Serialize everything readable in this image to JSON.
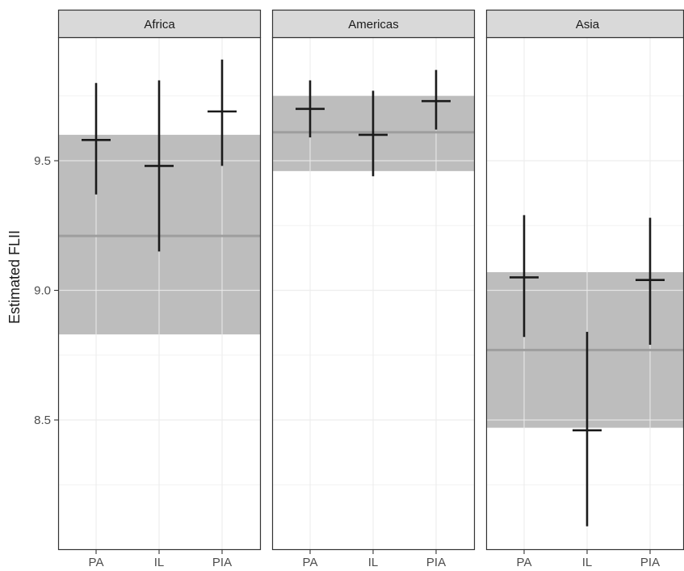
{
  "chart_data": {
    "type": "errorbar",
    "ylabel": "Estimated FLII",
    "xlabel": "",
    "ylim": [
      8.0,
      10.0
    ],
    "y_ticks": [
      8.5,
      9.0,
      9.5
    ],
    "y_tick_labels": [
      "8.5",
      "9.0",
      "9.5"
    ],
    "categories": [
      "PA",
      "IL",
      "PIA"
    ],
    "panels": [
      {
        "name": "Africa",
        "band": {
          "mean": 9.21,
          "low": 8.83,
          "high": 9.6
        },
        "points": [
          {
            "category": "PA",
            "estimate": 9.58,
            "lower": 9.37,
            "upper": 9.8
          },
          {
            "category": "IL",
            "estimate": 9.48,
            "lower": 9.15,
            "upper": 9.81
          },
          {
            "category": "PIA",
            "estimate": 9.69,
            "lower": 9.48,
            "upper": 9.89
          }
        ]
      },
      {
        "name": "Americas",
        "band": {
          "mean": 9.61,
          "low": 9.46,
          "high": 9.75
        },
        "points": [
          {
            "category": "PA",
            "estimate": 9.7,
            "lower": 9.59,
            "upper": 9.81
          },
          {
            "category": "IL",
            "estimate": 9.6,
            "lower": 9.44,
            "upper": 9.77
          },
          {
            "category": "PIA",
            "estimate": 9.73,
            "lower": 9.62,
            "upper": 9.85
          }
        ]
      },
      {
        "name": "Asia",
        "band": {
          "mean": 8.77,
          "low": 8.47,
          "high": 9.07
        },
        "points": [
          {
            "category": "PA",
            "estimate": 9.05,
            "lower": 8.82,
            "upper": 9.29
          },
          {
            "category": "IL",
            "estimate": 8.46,
            "lower": 8.09,
            "upper": 8.84
          },
          {
            "category": "PIA",
            "estimate": 9.04,
            "lower": 8.79,
            "upper": 9.28
          }
        ]
      }
    ],
    "grid": true,
    "legend": "none",
    "colors": {
      "band": "#bdbdbd",
      "band_line": "#9e9e9e",
      "errorbar": "#1a1a1a",
      "strip_fill": "#d9d9d9",
      "grid_major": "#ebebeb",
      "grid_minor": "#f2f2f2",
      "panel_border": "#333333"
    }
  }
}
